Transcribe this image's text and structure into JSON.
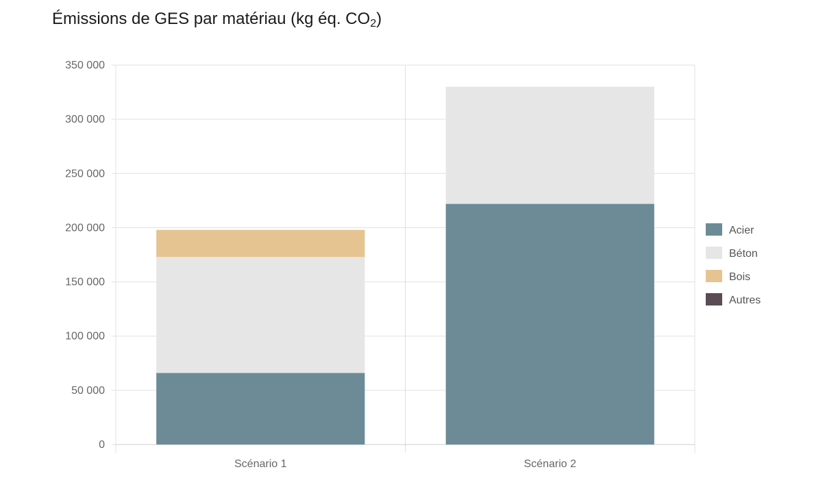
{
  "chart_data": {
    "type": "bar",
    "stacked": true,
    "title": "Émissions de GES par matériau (kg éq. CO",
    "title_subscript": "2",
    "title_suffix": ")",
    "xlabel": "",
    "ylabel": "",
    "categories": [
      "Scénario 1",
      "Scénario 2"
    ],
    "ylim": [
      0,
      350000
    ],
    "yticks": [
      0,
      50000,
      100000,
      150000,
      200000,
      250000,
      300000,
      350000
    ],
    "ytick_labels": [
      "0",
      "50 000",
      "100 000",
      "150 000",
      "200 000",
      "250 000",
      "300 000",
      "350 000"
    ],
    "grid": true,
    "legend_position": "right",
    "series": [
      {
        "name": "Acier",
        "color": "#6c8b97",
        "values": [
          66000,
          222000
        ]
      },
      {
        "name": "Béton",
        "color": "#e6e6e6",
        "values": [
          107000,
          108000
        ]
      },
      {
        "name": "Bois",
        "color": "#e5c492",
        "values": [
          25000,
          0
        ]
      },
      {
        "name": "Autres",
        "color": "#5a4b55",
        "values": [
          0,
          0
        ]
      }
    ]
  }
}
